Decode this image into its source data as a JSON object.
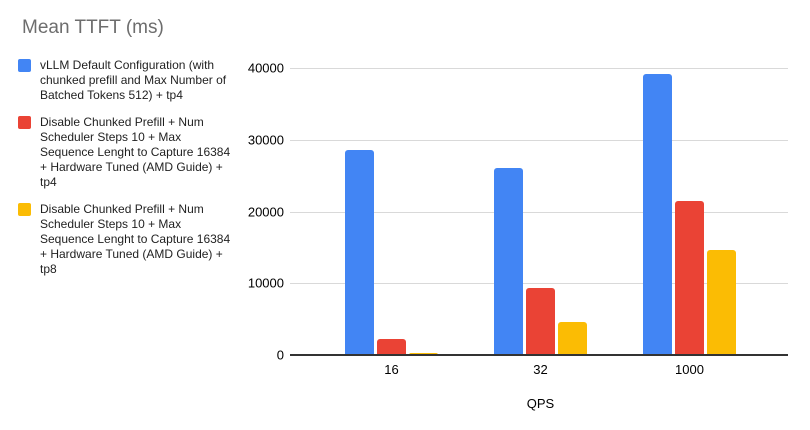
{
  "chart_data": {
    "type": "bar",
    "title": "Mean TTFT (ms)",
    "xlabel": "QPS",
    "ylabel": "",
    "categories": [
      "16",
      "32",
      "1000"
    ],
    "series": [
      {
        "name": "vLLM Default Configuration (with chunked prefill and Max Number of Batched Tokens 512) + tp4",
        "color": "#4285F4",
        "values": [
          28600,
          26000,
          39100
        ]
      },
      {
        "name": "Disable Chunked Prefill + Num Scheduler Steps 10 + Max Sequence Lenght to Capture 16384 + Hardware Tuned (AMD Guide) + tp4",
        "color": "#EA4335",
        "values": [
          2300,
          9400,
          21500
        ]
      },
      {
        "name": "Disable Chunked Prefill + Num Scheduler Steps 10 + Max Sequence Lenght to Capture 16384 + Hardware Tuned (AMD Guide) + tp8",
        "color": "#FBBC04",
        "values": [
          300,
          4600,
          14700
        ]
      }
    ],
    "ylim": [
      0,
      40000
    ],
    "yticks": [
      0,
      10000,
      20000,
      30000,
      40000
    ],
    "grid": true,
    "legend_position": "left"
  },
  "colors": {
    "background": "#ffffff",
    "title_text": "#6d6d6d",
    "axis_text": "#000000",
    "legend_text": "#1f1f1f",
    "gridline": "#d9d9d9",
    "axis_line": "#333333"
  }
}
